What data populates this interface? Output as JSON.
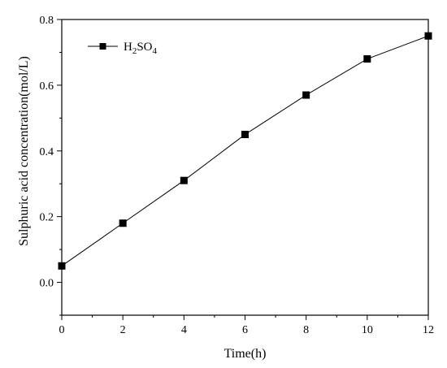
{
  "chart_data": {
    "type": "line",
    "title": "",
    "xlabel": "Time(h)",
    "ylabel": "Sulphuric acid concentration(mol/L)",
    "xlim": [
      0,
      12
    ],
    "ylim": [
      -0.1,
      0.8
    ],
    "x_ticks": [
      "0",
      "2",
      "4",
      "6",
      "8",
      "10",
      "12"
    ],
    "y_ticks": [
      "0.0",
      "0.2",
      "0.4",
      "0.6",
      "0.8"
    ],
    "grid": false,
    "legend_position": "top-left",
    "series": [
      {
        "name": "H2SO4",
        "legend_parts": {
          "a": "H",
          "b": "2",
          "c": "SO",
          "d": "4"
        },
        "marker": "square",
        "color": "#000000",
        "x": [
          0,
          2,
          4,
          6,
          8,
          10,
          12
        ],
        "y": [
          0.05,
          0.18,
          0.31,
          0.45,
          0.57,
          0.68,
          0.75
        ]
      }
    ]
  }
}
